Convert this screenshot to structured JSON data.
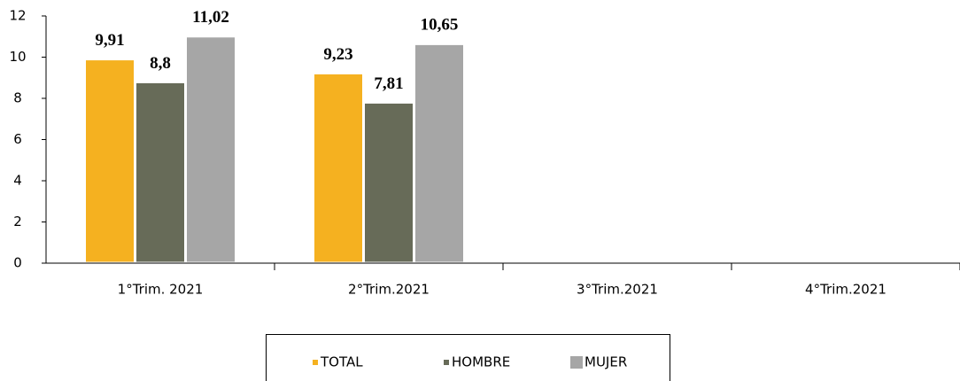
{
  "chart_data": {
    "type": "bar",
    "categories": [
      "1°Trim. 2021",
      "2°Trim.2021",
      "3°Trim.2021",
      "4°Trim.2021"
    ],
    "series": [
      {
        "name": "TOTAL",
        "color": "#f5b120",
        "values": [
          9.91,
          9.23,
          null,
          null
        ],
        "value_labels": [
          "9,91",
          "9,23",
          null,
          null
        ]
      },
      {
        "name": "HOMBRE",
        "color": "#676b58",
        "values": [
          8.8,
          7.81,
          null,
          null
        ],
        "value_labels": [
          "8,8",
          "7,81",
          null,
          null
        ]
      },
      {
        "name": "MUJER",
        "color": "#a6a6a6",
        "values": [
          11.02,
          10.65,
          null,
          null
        ],
        "value_labels": [
          "11,02",
          "10,65",
          null,
          null
        ]
      }
    ],
    "ylim": [
      0,
      12
    ],
    "yticks": [
      0,
      2,
      4,
      6,
      8,
      10,
      12
    ],
    "grid": false,
    "legend": "bottom"
  }
}
